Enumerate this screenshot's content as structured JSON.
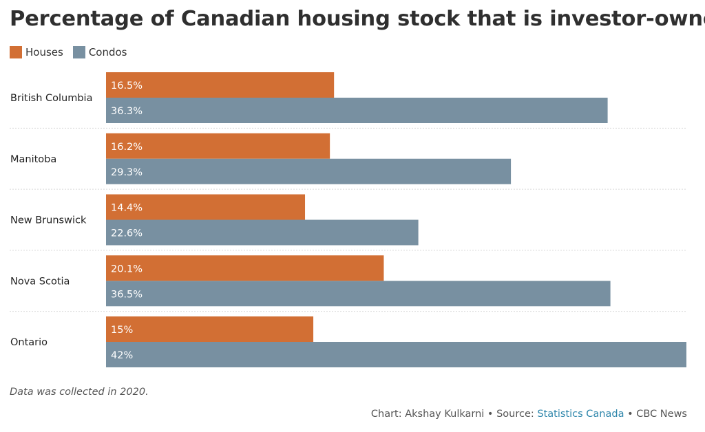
{
  "colors": {
    "houses": "#d26f34",
    "condos": "#7890a1",
    "gridline": "#d9d9d9",
    "bar_label": "#ffffff",
    "source_link": "#2e86ab"
  },
  "credit": {
    "prefix": "Chart: Akshay Kulkarni • Source: ",
    "source": "Statistics Canada",
    "suffix": " • CBC News"
  },
  "chart_data": {
    "type": "bar",
    "orientation": "horizontal",
    "title": "Percentage of Canadian housing stock that is investor-owned",
    "note": "Data was collected in 2020.",
    "categories": [
      "British Columbia",
      "Manitoba",
      "New Brunswick",
      "Nova Scotia",
      "Ontario"
    ],
    "series": [
      {
        "name": "Houses",
        "values": [
          16.5,
          16.2,
          14.4,
          20.1,
          15
        ],
        "labels": [
          "16.5%",
          "16.2%",
          "14.4%",
          "20.1%",
          "15%"
        ]
      },
      {
        "name": "Condos",
        "values": [
          36.3,
          29.3,
          22.6,
          36.5,
          42
        ],
        "labels": [
          "36.3%",
          "29.3%",
          "22.6%",
          "36.5%",
          "42%"
        ]
      }
    ],
    "xlim": [
      0,
      42
    ],
    "legend_position": "top-left",
    "grid": false
  }
}
